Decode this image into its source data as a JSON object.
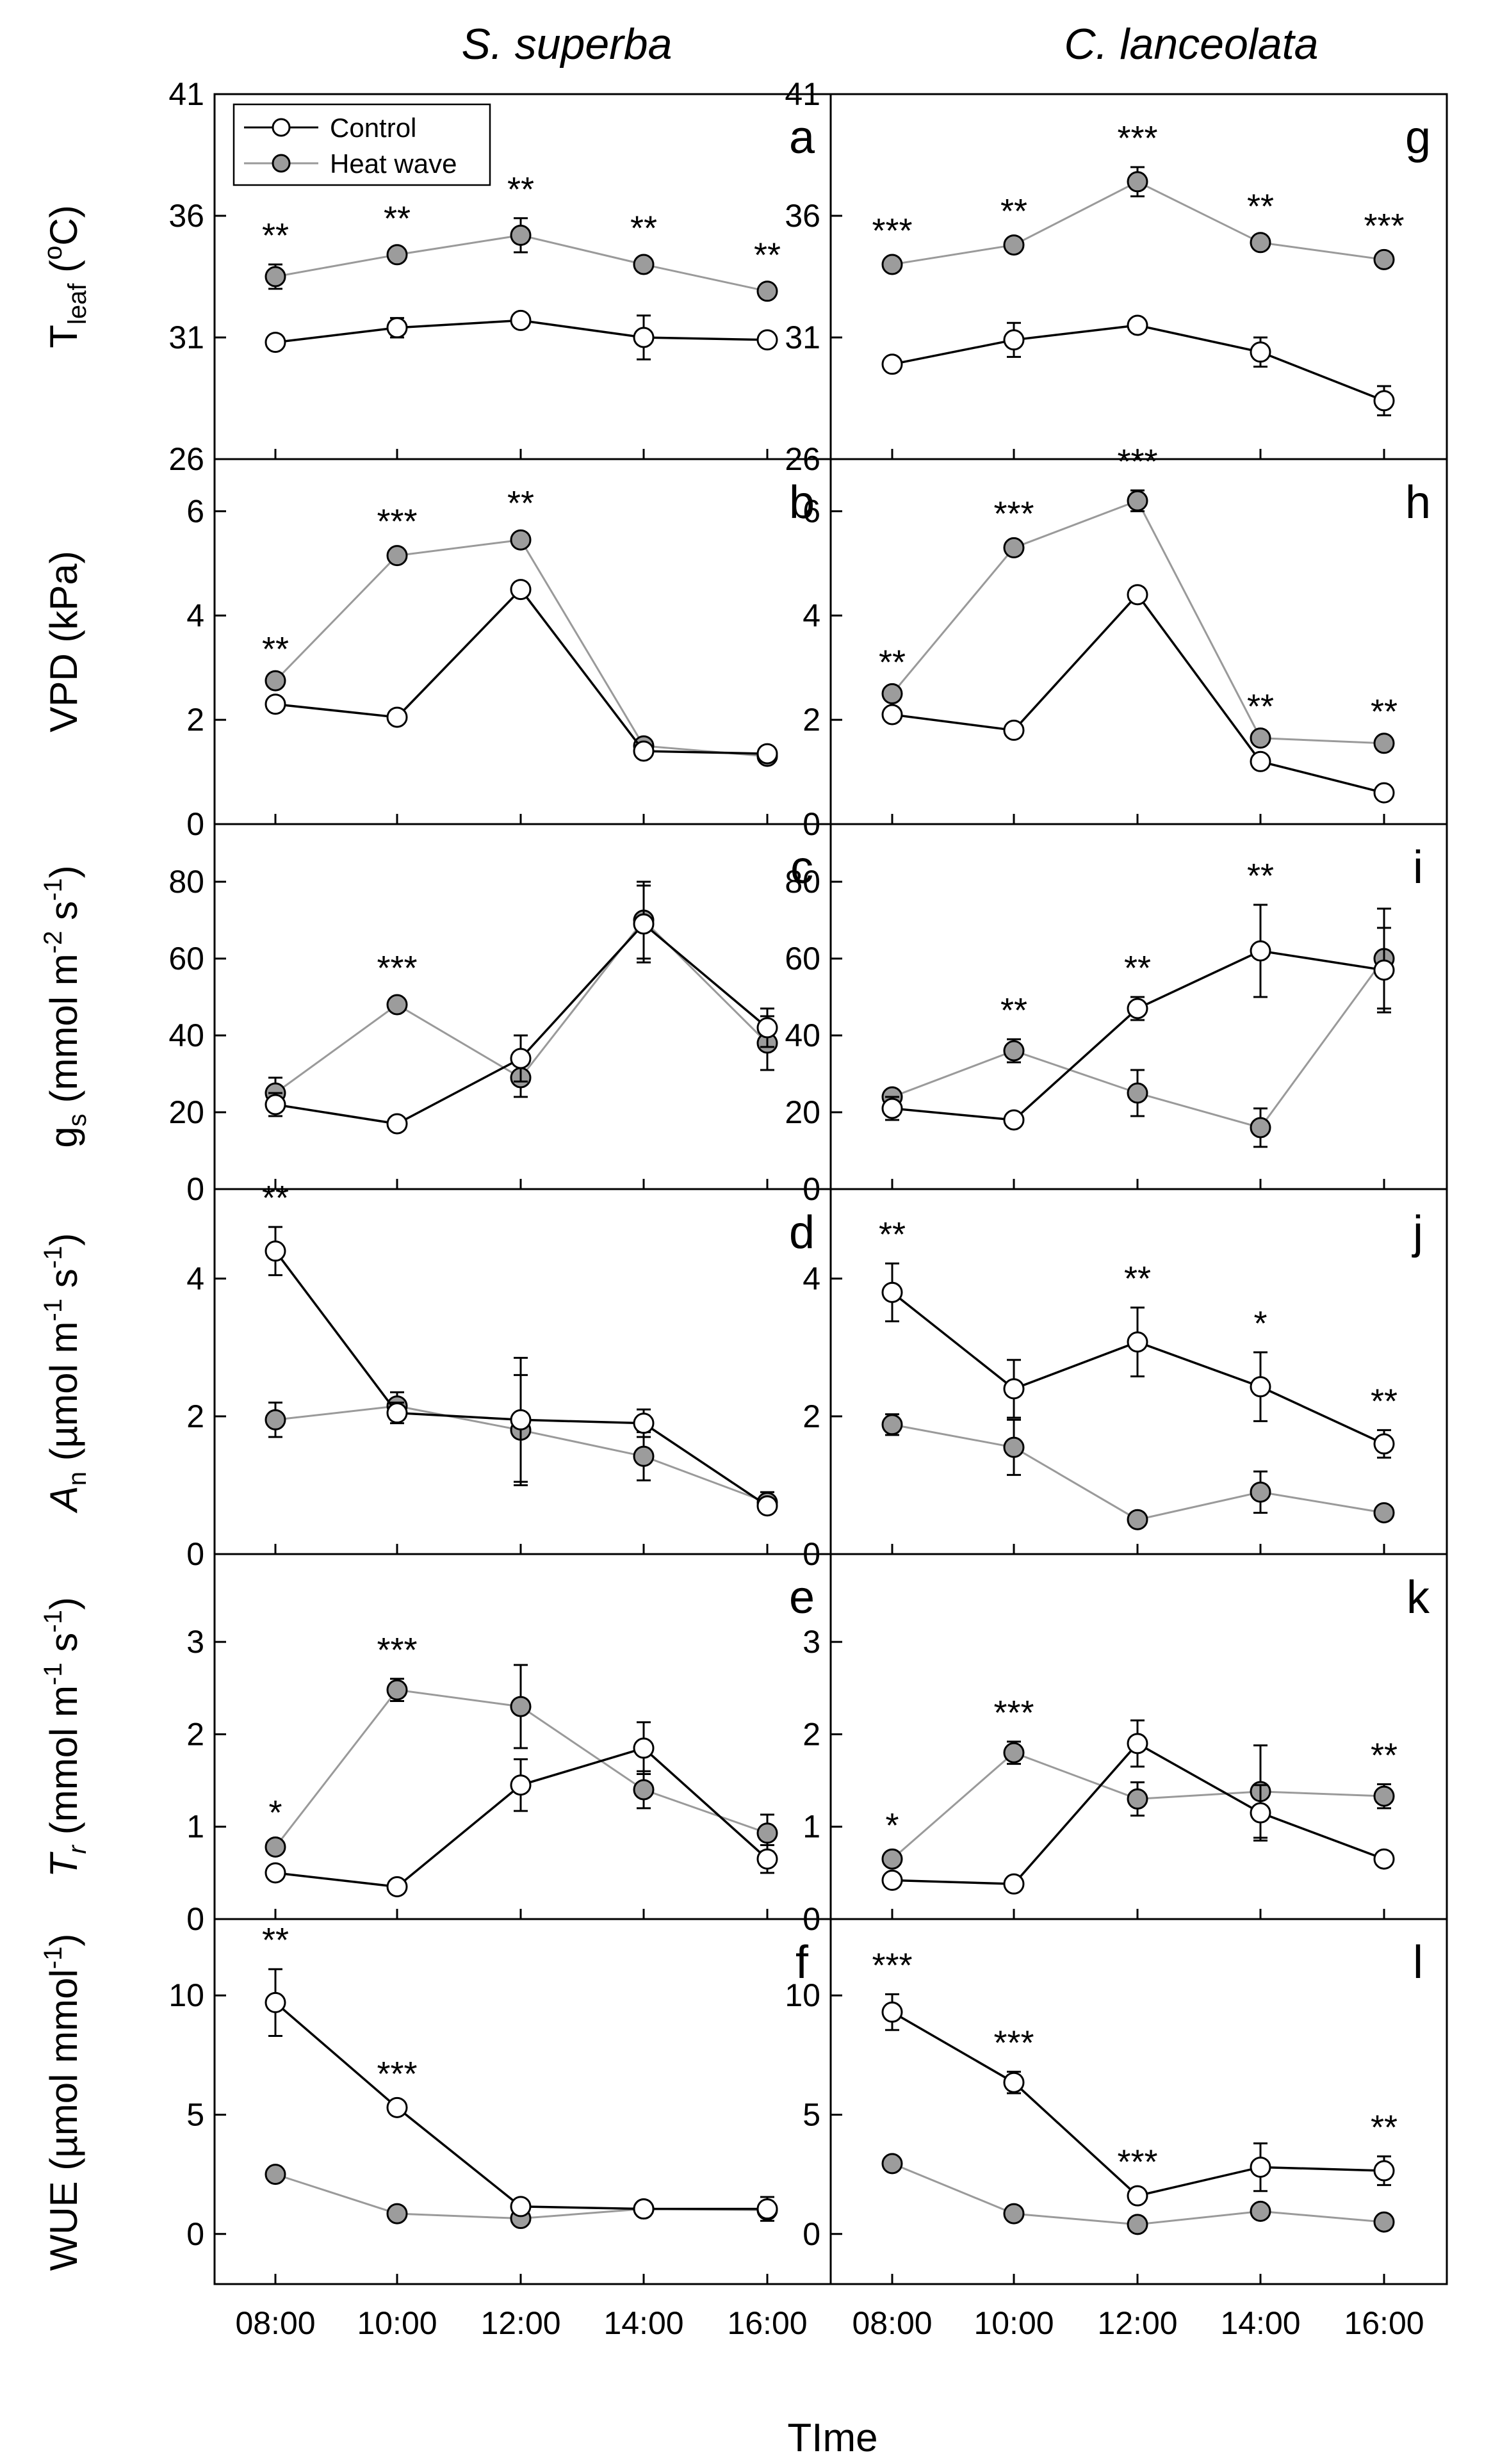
{
  "figure": {
    "column_titles": [
      "S. superba",
      "C. lanceolata"
    ],
    "x_axis_title": "TIme",
    "x_tick_labels": [
      "08:00",
      "10:00",
      "12:00",
      "14:00",
      "16:00"
    ],
    "legend": {
      "control": "Control",
      "heat_wave": "Heat wave"
    },
    "colors": {
      "control_line": "#000000",
      "heat_line": "#9a9a9a",
      "heat_fill": "#9c9c9c",
      "control_fill": "#ffffff"
    }
  },
  "chart_data": [
    {
      "type": "line",
      "row": 0,
      "col": 0,
      "letter": "a",
      "show_legend": true,
      "ylabel": "T_leaf (°C)",
      "ylim": [
        26,
        41
      ],
      "yticks": [
        26,
        31,
        36,
        41
      ],
      "x": [
        "08:00",
        "10:00",
        "12:00",
        "14:00",
        "16:00"
      ],
      "series": [
        {
          "name": "Control",
          "values": [
            30.8,
            31.4,
            31.7,
            31.0,
            30.9
          ],
          "errors": [
            0.2,
            0.4,
            0.3,
            0.9,
            0.2
          ]
        },
        {
          "name": "Heat wave",
          "values": [
            33.5,
            34.4,
            35.2,
            34.0,
            32.9
          ],
          "errors": [
            0.5,
            0.3,
            0.7,
            0.3,
            0.3
          ]
        }
      ],
      "significance": [
        "**",
        "**",
        "**",
        "**",
        "**"
      ]
    },
    {
      "type": "line",
      "row": 1,
      "col": 0,
      "letter": "b",
      "show_legend": false,
      "ylabel": "VPD (kPa)",
      "ylim": [
        0,
        7
      ],
      "yticks": [
        0,
        2,
        4,
        6
      ],
      "x": [
        "08:00",
        "10:00",
        "12:00",
        "14:00",
        "16:00"
      ],
      "series": [
        {
          "name": "Control",
          "values": [
            2.3,
            2.05,
            4.5,
            1.4,
            1.35
          ],
          "errors": [
            0.05,
            0.05,
            0.05,
            0.05,
            0.05
          ]
        },
        {
          "name": "Heat wave",
          "values": [
            2.75,
            5.15,
            5.45,
            1.5,
            1.3
          ],
          "errors": [
            0.05,
            0.1,
            0.15,
            0.05,
            0.05
          ]
        }
      ],
      "significance": [
        "**",
        "***",
        "**",
        "",
        ""
      ]
    },
    {
      "type": "line",
      "row": 2,
      "col": 0,
      "letter": "c",
      "show_legend": false,
      "ylabel": "g_s (mmol m^-2 s^-1)",
      "ylim": [
        0,
        95
      ],
      "yticks": [
        0,
        20,
        40,
        60,
        80
      ],
      "x": [
        "08:00",
        "10:00",
        "12:00",
        "14:00",
        "16:00"
      ],
      "series": [
        {
          "name": "Control",
          "values": [
            22,
            17,
            34,
            69,
            42
          ],
          "errors": [
            3,
            2,
            6,
            10,
            5
          ]
        },
        {
          "name": "Heat wave",
          "values": [
            25,
            48,
            29,
            70,
            38
          ],
          "errors": [
            4,
            2,
            5,
            10,
            7
          ]
        }
      ],
      "significance": [
        "",
        "***",
        "",
        "",
        ""
      ]
    },
    {
      "type": "line",
      "row": 3,
      "col": 0,
      "letter": "d",
      "show_legend": false,
      "ylabel": "A_n (µmol m^-1 s^-1)",
      "ylim": [
        0,
        5.3
      ],
      "yticks": [
        0,
        2,
        4
      ],
      "x": [
        "08:00",
        "10:00",
        "12:00",
        "14:00",
        "16:00"
      ],
      "series": [
        {
          "name": "Control",
          "values": [
            4.4,
            2.05,
            1.95,
            1.9,
            0.7
          ],
          "errors": [
            0.35,
            0.15,
            0.9,
            0.2,
            0.1
          ]
        },
        {
          "name": "Heat wave",
          "values": [
            1.95,
            2.15,
            1.8,
            1.42,
            0.75
          ],
          "errors": [
            0.25,
            0.2,
            0.8,
            0.35,
            0.15
          ]
        }
      ],
      "significance": [
        "**",
        "",
        "",
        "",
        ""
      ]
    },
    {
      "type": "line",
      "row": 4,
      "col": 0,
      "letter": "e",
      "show_legend": false,
      "ylabel": "T_r (mmol m^-1 s^-1)",
      "ylim": [
        0,
        3.95
      ],
      "yticks": [
        0,
        1,
        2,
        3
      ],
      "x": [
        "08:00",
        "10:00",
        "12:00",
        "14:00",
        "16:00"
      ],
      "series": [
        {
          "name": "Control",
          "values": [
            0.5,
            0.35,
            1.45,
            1.85,
            0.65
          ],
          "errors": [
            0.08,
            0.04,
            0.28,
            0.28,
            0.15
          ]
        },
        {
          "name": "Heat wave",
          "values": [
            0.78,
            2.48,
            2.3,
            1.4,
            0.93
          ],
          "errors": [
            0.06,
            0.12,
            0.45,
            0.2,
            0.2
          ]
        }
      ],
      "significance": [
        "*",
        "***",
        "",
        "",
        ""
      ]
    },
    {
      "type": "line",
      "row": 5,
      "col": 0,
      "letter": "f",
      "show_legend": false,
      "ylabel": "WUE (µmol mmol^-1)",
      "ylim": [
        -2.1,
        13.2
      ],
      "yticks": [
        0,
        5,
        10
      ],
      "x": [
        "08:00",
        "10:00",
        "12:00",
        "14:00",
        "16:00"
      ],
      "series": [
        {
          "name": "Control",
          "values": [
            9.7,
            5.3,
            1.15,
            1.05,
            1.05
          ],
          "errors": [
            1.4,
            0.2,
            0.1,
            0.1,
            0.5
          ]
        },
        {
          "name": "Heat wave",
          "values": [
            2.5,
            0.85,
            0.65,
            1.05,
            1.0
          ],
          "errors": [
            0.1,
            0.1,
            0.1,
            0.1,
            0.4
          ]
        }
      ],
      "significance": [
        "**",
        "***",
        "",
        "",
        ""
      ]
    },
    {
      "type": "line",
      "row": 0,
      "col": 1,
      "letter": "g",
      "show_legend": false,
      "ylabel": "",
      "ylim": [
        26,
        41
      ],
      "yticks": [
        26,
        31,
        36,
        41
      ],
      "x": [
        "08:00",
        "10:00",
        "12:00",
        "14:00",
        "16:00"
      ],
      "series": [
        {
          "name": "Control",
          "values": [
            29.9,
            30.9,
            31.5,
            30.4,
            28.4
          ],
          "errors": [
            0.2,
            0.7,
            0.2,
            0.6,
            0.6
          ]
        },
        {
          "name": "Heat wave",
          "values": [
            34.0,
            34.8,
            37.4,
            34.9,
            34.2
          ],
          "errors": [
            0.2,
            0.2,
            0.6,
            0.3,
            0.2
          ]
        }
      ],
      "significance": [
        "***",
        "**",
        "***",
        "**",
        "***"
      ]
    },
    {
      "type": "line",
      "row": 1,
      "col": 1,
      "letter": "h",
      "show_legend": false,
      "ylabel": "",
      "ylim": [
        0,
        7
      ],
      "yticks": [
        0,
        2,
        4,
        6
      ],
      "x": [
        "08:00",
        "10:00",
        "12:00",
        "14:00",
        "16:00"
      ],
      "series": [
        {
          "name": "Control",
          "values": [
            2.1,
            1.8,
            4.4,
            1.2,
            0.6
          ],
          "errors": [
            0.05,
            0.05,
            0.05,
            0.05,
            0.05
          ]
        },
        {
          "name": "Heat wave",
          "values": [
            2.5,
            5.3,
            6.2,
            1.65,
            1.55
          ],
          "errors": [
            0.05,
            0.1,
            0.2,
            0.05,
            0.05
          ]
        }
      ],
      "significance": [
        "**",
        "***",
        "***",
        "**",
        "**"
      ]
    },
    {
      "type": "line",
      "row": 2,
      "col": 1,
      "letter": "i",
      "show_legend": false,
      "ylabel": "",
      "ylim": [
        0,
        95
      ],
      "yticks": [
        0,
        20,
        40,
        60,
        80
      ],
      "x": [
        "08:00",
        "10:00",
        "12:00",
        "14:00",
        "16:00"
      ],
      "series": [
        {
          "name": "Control",
          "values": [
            21,
            18,
            47,
            62,
            57
          ],
          "errors": [
            3,
            1.5,
            3,
            12,
            11
          ]
        },
        {
          "name": "Heat wave",
          "values": [
            24,
            36,
            25,
            16,
            60
          ],
          "errors": [
            2,
            3,
            6,
            5,
            13
          ]
        }
      ],
      "significance": [
        "",
        "**",
        "**",
        "**",
        ""
      ]
    },
    {
      "type": "line",
      "row": 3,
      "col": 1,
      "letter": "j",
      "show_legend": false,
      "ylabel": "",
      "ylim": [
        0,
        5.3
      ],
      "yticks": [
        0,
        2,
        4
      ],
      "x": [
        "08:00",
        "10:00",
        "12:00",
        "14:00",
        "16:00"
      ],
      "series": [
        {
          "name": "Control",
          "values": [
            3.8,
            2.4,
            3.08,
            2.43,
            1.6
          ],
          "errors": [
            0.42,
            0.42,
            0.5,
            0.5,
            0.2
          ]
        },
        {
          "name": "Heat wave",
          "values": [
            1.88,
            1.55,
            0.5,
            0.9,
            0.6
          ],
          "errors": [
            0.15,
            0.4,
            0.08,
            0.3,
            0.06
          ]
        }
      ],
      "significance": [
        "**",
        "",
        "**",
        "*",
        "**"
      ]
    },
    {
      "type": "line",
      "row": 4,
      "col": 1,
      "letter": "k",
      "show_legend": false,
      "ylabel": "",
      "ylim": [
        0,
        3.95
      ],
      "yticks": [
        0,
        1,
        2,
        3
      ],
      "x": [
        "08:00",
        "10:00",
        "12:00",
        "14:00",
        "16:00"
      ],
      "series": [
        {
          "name": "Control",
          "values": [
            0.42,
            0.38,
            1.9,
            1.15,
            0.65
          ],
          "errors": [
            0.04,
            0.04,
            0.25,
            0.3,
            0.05
          ]
        },
        {
          "name": "Heat wave",
          "values": [
            0.65,
            1.8,
            1.3,
            1.38,
            1.33
          ],
          "errors": [
            0.05,
            0.12,
            0.18,
            0.5,
            0.13
          ]
        }
      ],
      "significance": [
        "*",
        "***",
        "",
        "",
        "**"
      ]
    },
    {
      "type": "line",
      "row": 5,
      "col": 1,
      "letter": "l",
      "show_legend": false,
      "ylabel": "",
      "ylim": [
        -2.1,
        13.2
      ],
      "yticks": [
        0,
        5,
        10
      ],
      "x": [
        "08:00",
        "10:00",
        "12:00",
        "14:00",
        "16:00"
      ],
      "series": [
        {
          "name": "Control",
          "values": [
            9.3,
            6.35,
            1.6,
            2.8,
            2.65
          ],
          "errors": [
            0.75,
            0.45,
            0.2,
            1.0,
            0.6
          ]
        },
        {
          "name": "Heat wave",
          "values": [
            2.95,
            0.85,
            0.4,
            0.95,
            0.5
          ],
          "errors": [
            0.1,
            0.1,
            0.1,
            0.15,
            0.1
          ]
        }
      ],
      "significance": [
        "***",
        "***",
        "***",
        "",
        "**"
      ]
    }
  ]
}
